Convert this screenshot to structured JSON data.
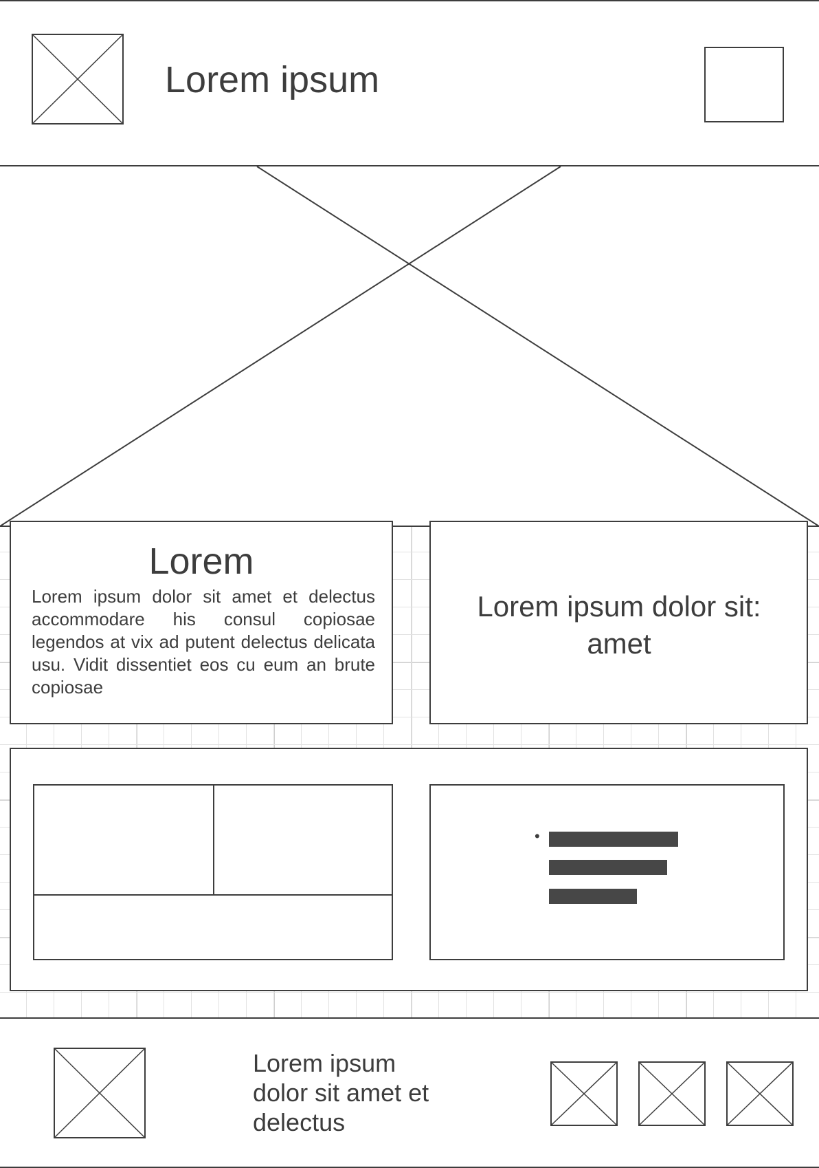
{
  "header": {
    "title": "Lorem ipsum",
    "logo_icon": "image-placeholder-icon",
    "action_icon": "square-button-icon"
  },
  "hero": {
    "icon": "image-placeholder-icon"
  },
  "card_left": {
    "heading": "Lorem",
    "body": "Lorem ipsum dolor sit amet et delectus accommodare his consul copiosae legendos at vix ad putent delectus delicata usu. Vidit dissentiet eos cu eum an brute copiosae"
  },
  "card_right": {
    "text": "Lorem ipsum dolor sit: amet"
  },
  "panel": {
    "list_bullet": "•",
    "list_items": [
      "placeholder-line",
      "placeholder-line",
      "placeholder-line"
    ]
  },
  "footer": {
    "text": "Lorem ipsum dolor sit amet et delectus",
    "logo_icon": "image-placeholder-icon",
    "social_icons": [
      "image-placeholder-icon",
      "image-placeholder-icon",
      "image-placeholder-icon"
    ]
  },
  "colors": {
    "stroke": "#3d3d3d",
    "text": "#3d3d3d",
    "grid": "#e2e2e2",
    "bar": "#474747"
  }
}
